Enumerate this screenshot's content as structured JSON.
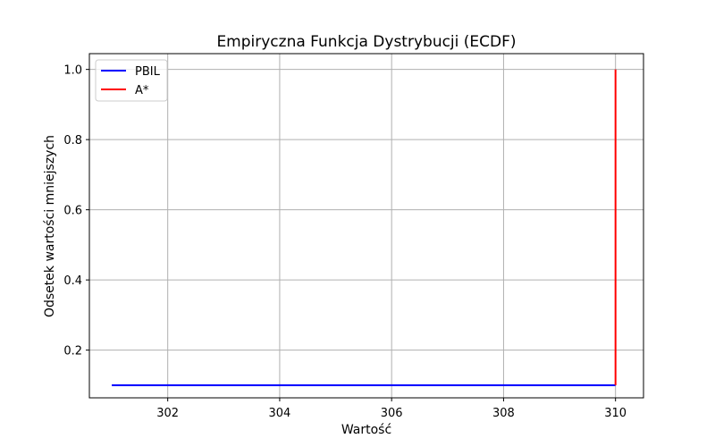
{
  "chart_data": {
    "type": "line",
    "title": "Empiryczna Funkcja Dystrybucji (ECDF)",
    "xlabel": "Wartość",
    "ylabel": "Odsetek wartości mniejszych",
    "xlim": [
      300.6,
      310.5
    ],
    "ylim": [
      0.064,
      1.045
    ],
    "x_ticks": [
      302,
      304,
      306,
      308,
      310
    ],
    "x_tick_labels": [
      "302",
      "304",
      "306",
      "308",
      "310"
    ],
    "y_ticks": [
      0.2,
      0.4,
      0.6,
      0.8,
      1.0
    ],
    "y_tick_labels": [
      "0.2",
      "0.4",
      "0.6",
      "0.8",
      "1.0"
    ],
    "grid": true,
    "legend_position": "top-left",
    "series": [
      {
        "name": "PBIL",
        "color": "#0000ff",
        "points": [
          [
            301.0,
            0.1
          ],
          [
            310.0,
            0.1
          ]
        ]
      },
      {
        "name": "A*",
        "color": "#ff0000",
        "points": [
          [
            310.0,
            0.1
          ],
          [
            310.0,
            1.0
          ]
        ]
      }
    ]
  }
}
